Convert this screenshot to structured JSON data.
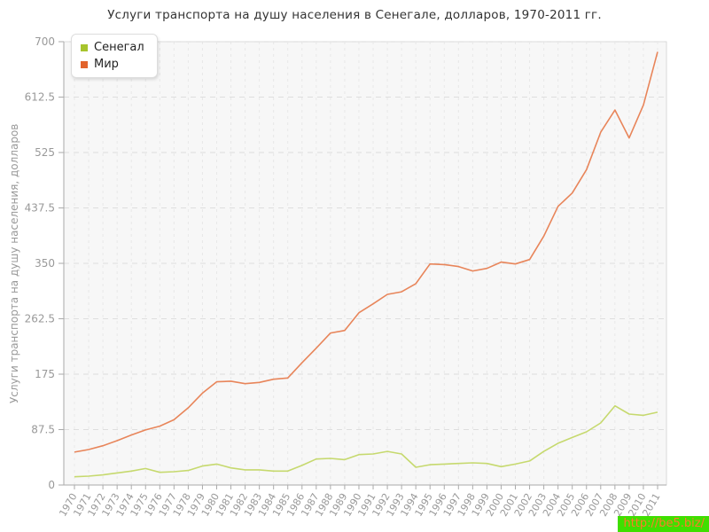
{
  "page": {
    "title": "Услуги транспорта на душу населения в Сенегале, долларов, 1970-2011 гг."
  },
  "watermark": {
    "text": "http://be5.biz/",
    "bg_color": "#3fdf00",
    "text_color": "#ff7a2a"
  },
  "colors": {
    "plot_bg": "#f7f7f7",
    "plot_border": "#d9d9d9",
    "axis": "#aaaaaa",
    "tick_label": "#999999",
    "grid_v": "#e8e8e8",
    "grid_h": "#dedede"
  },
  "chart_data": {
    "type": "line",
    "title": "Услуги транспорта на душу населения в Сенегале, долларов, 1970-2011 гг.",
    "xlabel": "",
    "ylabel": "Услуги транспорта на душу населения, долларов",
    "ylim": [
      0,
      700
    ],
    "yticks": [
      "0",
      "87.5",
      "175",
      "262.5",
      "350",
      "437.5",
      "525",
      "612.5",
      "700"
    ],
    "grid": "dashed, vertical per year and horizontal per 87.5",
    "legend_position": "top-left",
    "categories": [
      "1970",
      "1971",
      "1972",
      "1973",
      "1974",
      "1975",
      "1976",
      "1977",
      "1978",
      "1979",
      "1980",
      "1981",
      "1982",
      "1983",
      "1984",
      "1985",
      "1986",
      "1987",
      "1988",
      "1989",
      "1990",
      "1991",
      "1992",
      "1993",
      "1994",
      "1995",
      "1996",
      "1997",
      "1998",
      "1999",
      "2000",
      "2001",
      "2002",
      "2003",
      "2004",
      "2005",
      "2006",
      "2007",
      "2008",
      "2009",
      "2010",
      "2011"
    ],
    "series": [
      {
        "name": "Сенегал",
        "marker_color": "#a7c42d",
        "line_color": "#c6d96e",
        "values": [
          13,
          14,
          16,
          19,
          22,
          26,
          20,
          21,
          23,
          30,
          33,
          27,
          24,
          24,
          22,
          22,
          31,
          41,
          42,
          40,
          48,
          49,
          53,
          49,
          28,
          32,
          33,
          34,
          35,
          34,
          29,
          33,
          38,
          53,
          66,
          75,
          84,
          98,
          125,
          112,
          110,
          115
        ]
      },
      {
        "name": "Мир",
        "marker_color": "#e2632c",
        "line_color": "#e8855a",
        "values": [
          52,
          56,
          62,
          70,
          79,
          87,
          93,
          103,
          122,
          145,
          163,
          164,
          160,
          162,
          167,
          169,
          193,
          216,
          240,
          244,
          272,
          286,
          301,
          305,
          318,
          349,
          348,
          345,
          338,
          342,
          352,
          349,
          356,
          393,
          440,
          461,
          498,
          557,
          592,
          548,
          600,
          684
        ]
      }
    ]
  }
}
